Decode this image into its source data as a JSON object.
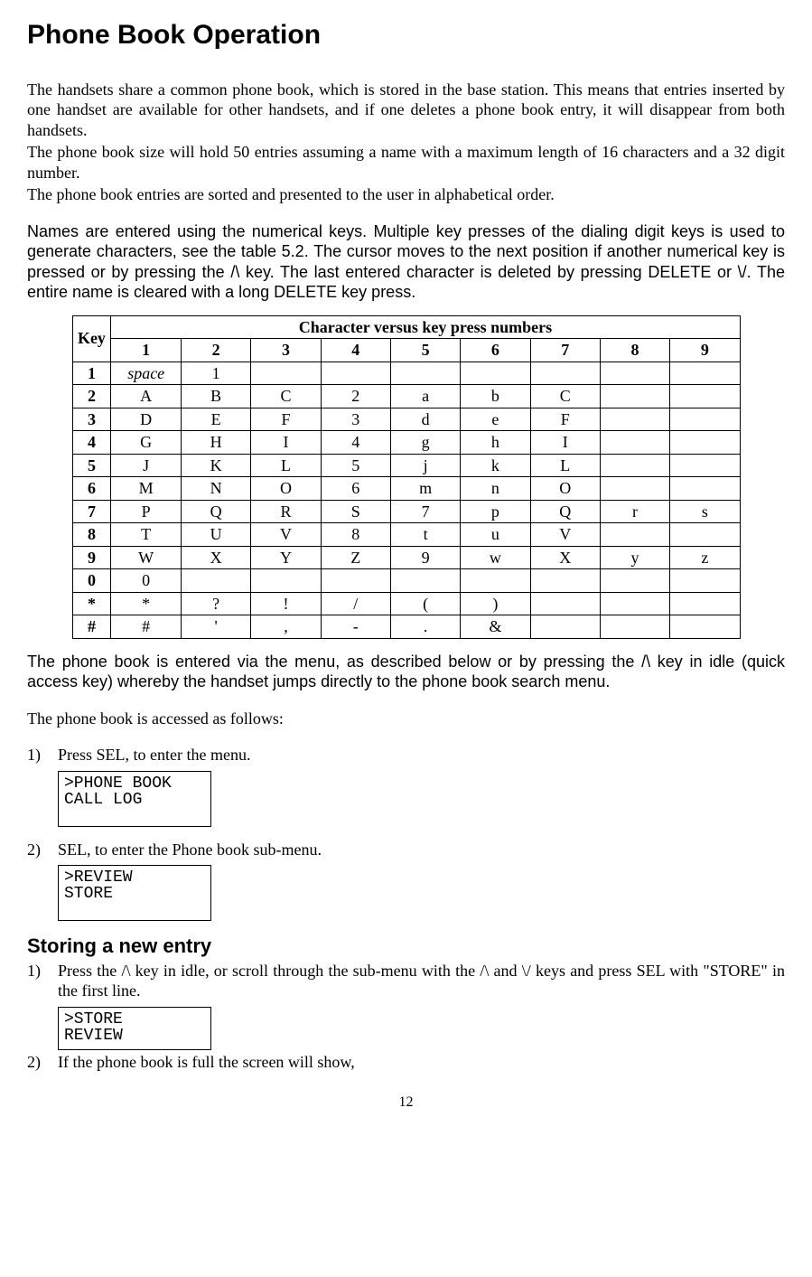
{
  "title": "Phone Book Operation",
  "para1": "The handsets share a common phone book, which is stored in the base station. This means that entries inserted by one handset are available for other handsets, and if one deletes a phone book entry, it will disappear from both handsets.",
  "para2": "The phone book size will hold 50 entries assuming a name with a maximum length of 16 characters and a 32 digit number.",
  "para3": "The phone book entries are sorted and presented to the user in alphabetical order.",
  "para4": "Names are entered using the numerical keys. Multiple key presses of the dialing digit keys is used to generate characters, see the table 5.2. The cursor moves to the next position if another numerical key is pressed or by pressing the /\\ key. The last entered character is deleted by pressing DELETE or \\/. The entire name is cleared with a long DELETE key press.",
  "table": {
    "header_key": "Key",
    "header_span": "Character versus key press numbers",
    "press_numbers": [
      "1",
      "2",
      "3",
      "4",
      "5",
      "6",
      "7",
      "8",
      "9"
    ],
    "rows": [
      {
        "key": "1",
        "cells": [
          "space",
          "1",
          "",
          "",
          "",
          "",
          "",
          "",
          ""
        ]
      },
      {
        "key": "2",
        "cells": [
          "A",
          "B",
          "C",
          "2",
          "a",
          "b",
          "C",
          "",
          ""
        ]
      },
      {
        "key": "3",
        "cells": [
          "D",
          "E",
          "F",
          "3",
          "d",
          "e",
          "F",
          "",
          ""
        ]
      },
      {
        "key": "4",
        "cells": [
          "G",
          "H",
          "I",
          "4",
          "g",
          "h",
          "I",
          "",
          ""
        ]
      },
      {
        "key": "5",
        "cells": [
          "J",
          "K",
          "L",
          "5",
          "j",
          "k",
          "L",
          "",
          ""
        ]
      },
      {
        "key": "6",
        "cells": [
          "M",
          "N",
          "O",
          "6",
          "m",
          "n",
          "O",
          "",
          ""
        ]
      },
      {
        "key": "7",
        "cells": [
          "P",
          "Q",
          "R",
          "S",
          "7",
          "p",
          "Q",
          "r",
          "s"
        ]
      },
      {
        "key": "8",
        "cells": [
          "T",
          "U",
          "V",
          "8",
          "t",
          "u",
          "V",
          "",
          ""
        ]
      },
      {
        "key": "9",
        "cells": [
          "W",
          "X",
          "Y",
          "Z",
          "9",
          "w",
          "X",
          "y",
          "z"
        ]
      },
      {
        "key": "0",
        "cells": [
          "0",
          "",
          "",
          "",
          "",
          "",
          "",
          "",
          ""
        ]
      },
      {
        "key": "*",
        "cells": [
          "*",
          "?",
          "!",
          "/",
          "(",
          ")",
          "",
          "",
          ""
        ]
      },
      {
        "key": "#",
        "cells": [
          "#",
          "'",
          ",",
          "-",
          ".",
          "&",
          "",
          "",
          ""
        ]
      }
    ]
  },
  "para5": "The phone book is entered via the menu, as described below or by pressing the /\\ key in idle (quick access key) whereby the handset jumps directly to the phone book search menu.",
  "para6": "The phone book is accessed as follows:",
  "steps_a": [
    {
      "num": "1)",
      "text": "Press SEL, to enter the menu.",
      "lcd": [
        ">PHONE BOOK",
        " CALL LOG"
      ]
    },
    {
      "num": "2)",
      "text": "SEL, to enter the Phone book sub-menu.",
      "lcd": [
        ">REVIEW",
        " STORE"
      ]
    }
  ],
  "section2_title": "Storing a new entry",
  "steps_b": [
    {
      "num": "1)",
      "text": "Press the /\\ key in idle, or scroll through the sub-menu with the /\\ and \\/ keys and press SEL with \"STORE\" in the first line.",
      "lcd": [
        ">STORE",
        " REVIEW"
      ]
    },
    {
      "num": "2)",
      "text": "If the phone book is full the screen will show,",
      "lcd": null
    }
  ],
  "page_number": "12"
}
